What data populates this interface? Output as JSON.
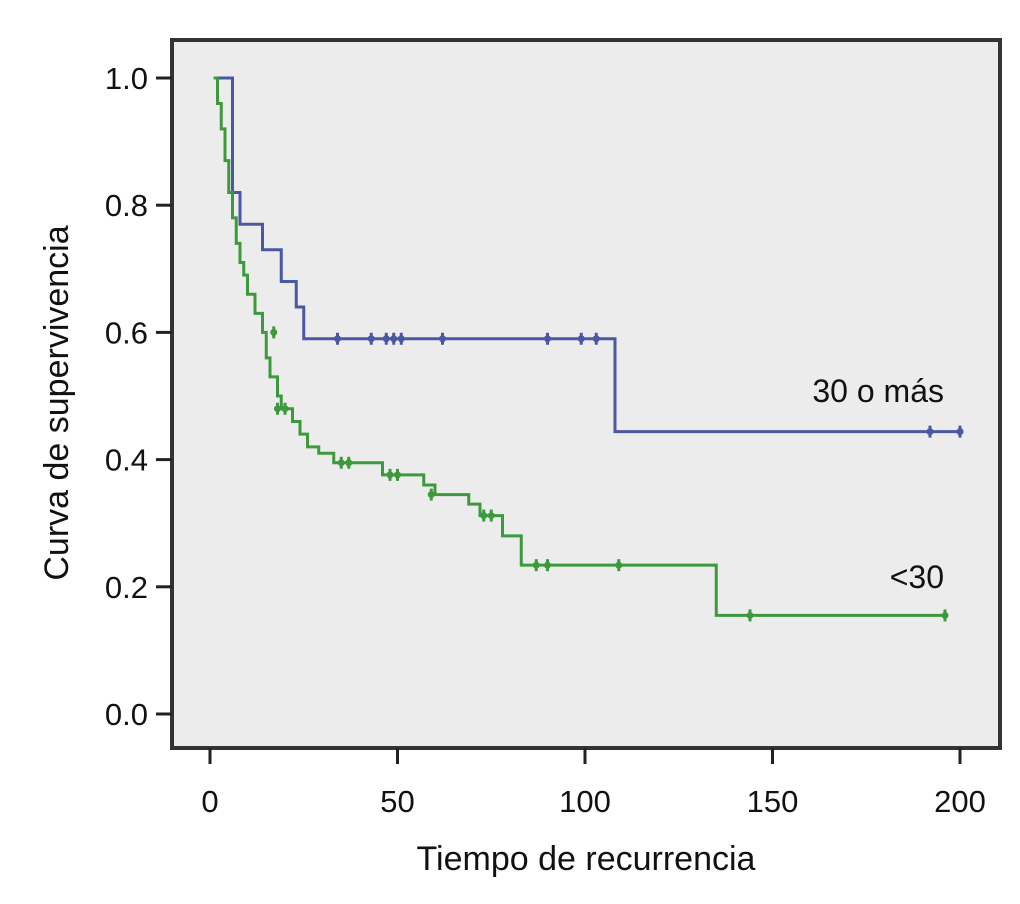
{
  "chart_data": {
    "type": "line",
    "title": "",
    "xlabel": "Tiempo de recurrencia",
    "ylabel": "Curva de supervivencia",
    "xlim": [
      0,
      200
    ],
    "ylim": [
      0,
      1
    ],
    "x_ticks": [
      0,
      50,
      100,
      150,
      200
    ],
    "x_tick_labels": [
      "0",
      "50",
      "100",
      "150",
      "200"
    ],
    "y_ticks": [
      0,
      0.2,
      0.4,
      0.6,
      0.8,
      1.0
    ],
    "y_tick_labels": [
      "0.0",
      "0.2",
      "0.4",
      "0.6",
      "0.8",
      "1.0"
    ],
    "grid": false,
    "legend": "none",
    "step": true,
    "colors": {
      "plot_background": "#ececec",
      "frame": "#333333"
    },
    "series": [
      {
        "name": "30 o más",
        "color": "#4a57a3",
        "steps": [
          [
            1,
            1.0
          ],
          [
            6,
            0.82
          ],
          [
            8,
            0.77
          ],
          [
            14,
            0.73
          ],
          [
            19,
            0.68
          ],
          [
            23,
            0.64
          ],
          [
            25,
            0.59
          ],
          [
            108,
            0.444
          ]
        ],
        "end_x": 200,
        "censored": [
          [
            34,
            0.59
          ],
          [
            43,
            0.59
          ],
          [
            47,
            0.59
          ],
          [
            49,
            0.59
          ],
          [
            51,
            0.59
          ],
          [
            62,
            0.59
          ],
          [
            90,
            0.59
          ],
          [
            99,
            0.59
          ],
          [
            103,
            0.59
          ],
          [
            192,
            0.444
          ],
          [
            200,
            0.444
          ]
        ]
      },
      {
        "name": "<30",
        "color": "#3c9a3c",
        "steps": [
          [
            1,
            1.0
          ],
          [
            2,
            0.96
          ],
          [
            3,
            0.92
          ],
          [
            4,
            0.87
          ],
          [
            5,
            0.82
          ],
          [
            6,
            0.78
          ],
          [
            7,
            0.74
          ],
          [
            8,
            0.71
          ],
          [
            9,
            0.69
          ],
          [
            10,
            0.66
          ],
          [
            12,
            0.63
          ],
          [
            14,
            0.6
          ],
          [
            15,
            0.56
          ],
          [
            16,
            0.53
          ],
          [
            18,
            0.5
          ],
          [
            19,
            0.48
          ],
          [
            22,
            0.46
          ],
          [
            24,
            0.44
          ],
          [
            26,
            0.42
          ],
          [
            29,
            0.41
          ],
          [
            33,
            0.395
          ],
          [
            46,
            0.376
          ],
          [
            57,
            0.36
          ],
          [
            60,
            0.345
          ],
          [
            69,
            0.33
          ],
          [
            72,
            0.312
          ],
          [
            78,
            0.28
          ],
          [
            83,
            0.234
          ],
          [
            135,
            0.155
          ]
        ],
        "end_x": 196,
        "censored": [
          [
            17,
            0.6
          ],
          [
            18,
            0.48
          ],
          [
            20,
            0.48
          ],
          [
            35,
            0.395
          ],
          [
            37,
            0.395
          ],
          [
            48,
            0.376
          ],
          [
            50,
            0.376
          ],
          [
            59,
            0.345
          ],
          [
            73,
            0.312
          ],
          [
            75,
            0.312
          ],
          [
            87,
            0.234
          ],
          [
            90,
            0.234
          ],
          [
            109,
            0.234
          ],
          [
            144,
            0.155
          ],
          [
            196,
            0.155
          ]
        ]
      }
    ]
  }
}
